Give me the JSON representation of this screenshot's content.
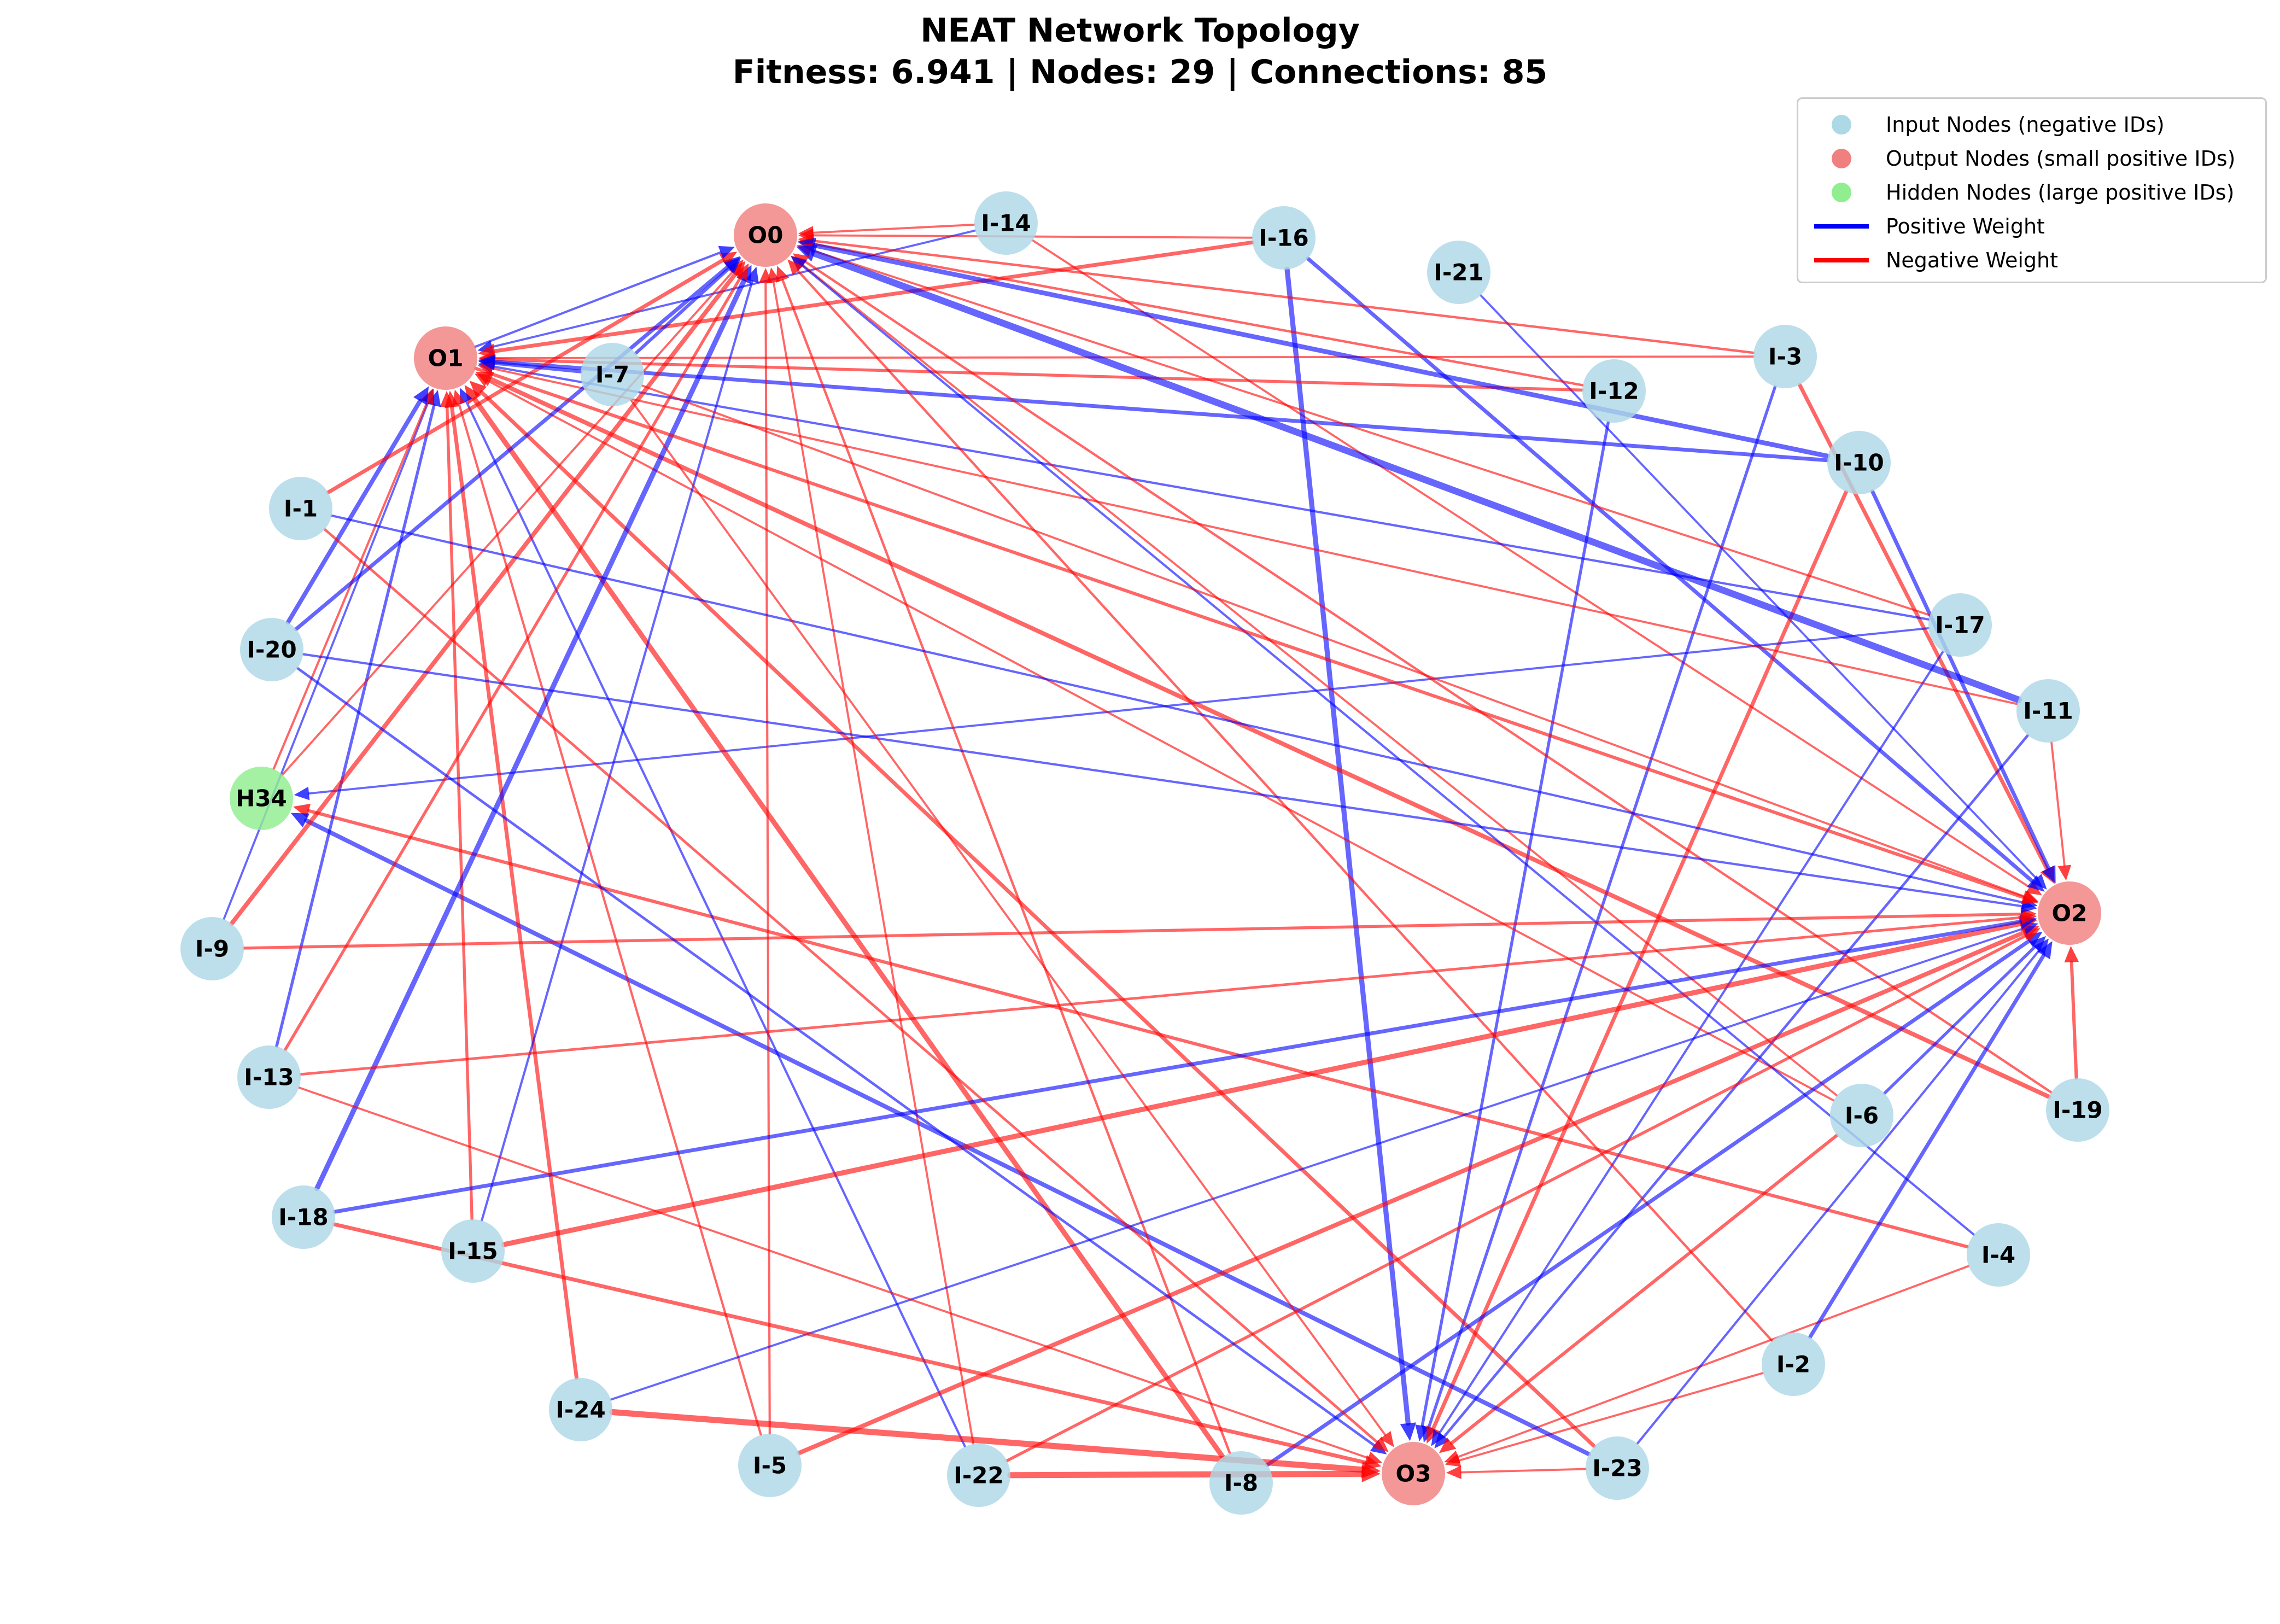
{
  "title": {
    "line1": "NEAT Network Topology",
    "line2": "Fitness: 6.941 | Nodes: 29 | Connections: 85"
  },
  "colors": {
    "input": "#add8e6",
    "output": "#f08080",
    "hidden": "#90ee90",
    "positive": "#0000ff",
    "negative": "#ff0000"
  },
  "legend": [
    {
      "label": "Input Nodes (negative IDs)",
      "kind": "dot",
      "color": "#add8e6"
    },
    {
      "label": "Output Nodes (small positive IDs)",
      "kind": "dot",
      "color": "#f08080"
    },
    {
      "label": "Hidden Nodes (large positive IDs)",
      "kind": "dot",
      "color": "#90ee90"
    },
    {
      "label": "Positive Weight",
      "kind": "line",
      "color": "#0000ff"
    },
    {
      "label": "Negative Weight",
      "kind": "line",
      "color": "#ff0000"
    }
  ],
  "nodes": [
    {
      "id": "O0",
      "type": "output"
    },
    {
      "id": "O1",
      "type": "output"
    },
    {
      "id": "O2",
      "type": "output"
    },
    {
      "id": "O3",
      "type": "output"
    },
    {
      "id": "H34",
      "type": "hidden"
    },
    {
      "id": "I-1",
      "type": "input"
    },
    {
      "id": "I-2",
      "type": "input"
    },
    {
      "id": "I-3",
      "type": "input"
    },
    {
      "id": "I-4",
      "type": "input"
    },
    {
      "id": "I-5",
      "type": "input"
    },
    {
      "id": "I-6",
      "type": "input"
    },
    {
      "id": "I-7",
      "type": "input"
    },
    {
      "id": "I-8",
      "type": "input"
    },
    {
      "id": "I-9",
      "type": "input"
    },
    {
      "id": "I-10",
      "type": "input"
    },
    {
      "id": "I-11",
      "type": "input"
    },
    {
      "id": "I-12",
      "type": "input"
    },
    {
      "id": "I-13",
      "type": "input"
    },
    {
      "id": "I-14",
      "type": "input"
    },
    {
      "id": "I-15",
      "type": "input"
    },
    {
      "id": "I-16",
      "type": "input"
    },
    {
      "id": "I-17",
      "type": "input"
    },
    {
      "id": "I-18",
      "type": "input"
    },
    {
      "id": "I-19",
      "type": "input"
    },
    {
      "id": "I-20",
      "type": "input"
    },
    {
      "id": "I-21",
      "type": "input"
    },
    {
      "id": "I-22",
      "type": "input"
    },
    {
      "id": "I-23",
      "type": "input"
    },
    {
      "id": "I-24",
      "type": "input"
    }
  ],
  "edges": [
    {
      "from": "I-14",
      "to": "O0",
      "sign": "negative",
      "weight": 0.5
    },
    {
      "from": "I-14",
      "to": "O1",
      "sign": "positive",
      "weight": 0.5
    },
    {
      "from": "I-14",
      "to": "O2",
      "sign": "negative",
      "weight": 0.5
    },
    {
      "from": "I-16",
      "to": "O0",
      "sign": "negative",
      "weight": 0.5
    },
    {
      "from": "I-16",
      "to": "O1",
      "sign": "negative",
      "weight": 1.5
    },
    {
      "from": "I-16",
      "to": "O2",
      "sign": "positive",
      "weight": 1.5
    },
    {
      "from": "I-16",
      "to": "O3",
      "sign": "positive",
      "weight": 2.2
    },
    {
      "from": "I-21",
      "to": "O2",
      "sign": "positive",
      "weight": 0.5
    },
    {
      "from": "I-3",
      "to": "O0",
      "sign": "negative",
      "weight": 0.7
    },
    {
      "from": "I-3",
      "to": "O1",
      "sign": "negative",
      "weight": 0.5
    },
    {
      "from": "I-3",
      "to": "O2",
      "sign": "negative",
      "weight": 1.5
    },
    {
      "from": "I-3",
      "to": "O3",
      "sign": "positive",
      "weight": 1.0
    },
    {
      "from": "I-12",
      "to": "O0",
      "sign": "negative",
      "weight": 0.7
    },
    {
      "from": "I-12",
      "to": "O1",
      "sign": "negative",
      "weight": 1.0
    },
    {
      "from": "I-12",
      "to": "O3",
      "sign": "positive",
      "weight": 1.0
    },
    {
      "from": "I-10",
      "to": "O0",
      "sign": "positive",
      "weight": 2.0
    },
    {
      "from": "I-10",
      "to": "O1",
      "sign": "positive",
      "weight": 1.5
    },
    {
      "from": "I-10",
      "to": "O2",
      "sign": "positive",
      "weight": 1.5
    },
    {
      "from": "I-10",
      "to": "O3",
      "sign": "negative",
      "weight": 1.5
    },
    {
      "from": "I-17",
      "to": "O0",
      "sign": "negative",
      "weight": 0.5
    },
    {
      "from": "I-17",
      "to": "O1",
      "sign": "positive",
      "weight": 0.6
    },
    {
      "from": "I-17",
      "to": "H34",
      "sign": "positive",
      "weight": 0.5
    },
    {
      "from": "I-17",
      "to": "O3",
      "sign": "positive",
      "weight": 0.6
    },
    {
      "from": "I-11",
      "to": "O0",
      "sign": "positive",
      "weight": 3.2
    },
    {
      "from": "I-11",
      "to": "O1",
      "sign": "negative",
      "weight": 0.5
    },
    {
      "from": "I-11",
      "to": "O2",
      "sign": "negative",
      "weight": 0.5
    },
    {
      "from": "I-11",
      "to": "O3",
      "sign": "positive",
      "weight": 0.8
    },
    {
      "from": "I-19",
      "to": "O0",
      "sign": "negative",
      "weight": 0.7
    },
    {
      "from": "I-19",
      "to": "O1",
      "sign": "negative",
      "weight": 1.8
    },
    {
      "from": "I-19",
      "to": "O2",
      "sign": "negative",
      "weight": 1.2
    },
    {
      "from": "I-6",
      "to": "O0",
      "sign": "negative",
      "weight": 0.5
    },
    {
      "from": "I-6",
      "to": "O1",
      "sign": "negative",
      "weight": 0.5
    },
    {
      "from": "I-6",
      "to": "O2",
      "sign": "positive",
      "weight": 1.0
    },
    {
      "from": "I-6",
      "to": "O3",
      "sign": "negative",
      "weight": 1.2
    },
    {
      "from": "I-4",
      "to": "O0",
      "sign": "positive",
      "weight": 0.6
    },
    {
      "from": "I-4",
      "to": "H34",
      "sign": "negative",
      "weight": 1.2
    },
    {
      "from": "I-4",
      "to": "O3",
      "sign": "negative",
      "weight": 0.5
    },
    {
      "from": "I-2",
      "to": "O0",
      "sign": "negative",
      "weight": 0.7
    },
    {
      "from": "I-2",
      "to": "O2",
      "sign": "positive",
      "weight": 1.5
    },
    {
      "from": "I-2",
      "to": "O3",
      "sign": "negative",
      "weight": 0.5
    },
    {
      "from": "I-23",
      "to": "O1",
      "sign": "negative",
      "weight": 1.5
    },
    {
      "from": "I-23",
      "to": "O2",
      "sign": "positive",
      "weight": 0.6
    },
    {
      "from": "I-23",
      "to": "H34",
      "sign": "positive",
      "weight": 1.8
    },
    {
      "from": "I-23",
      "to": "O3",
      "sign": "negative",
      "weight": 0.5
    },
    {
      "from": "I-8",
      "to": "O0",
      "sign": "negative",
      "weight": 0.7
    },
    {
      "from": "I-8",
      "to": "O1",
      "sign": "negative",
      "weight": 2.2
    },
    {
      "from": "I-8",
      "to": "O2",
      "sign": "positive",
      "weight": 1.5
    },
    {
      "from": "I-22",
      "to": "O0",
      "sign": "negative",
      "weight": 0.5
    },
    {
      "from": "I-22",
      "to": "O1",
      "sign": "positive",
      "weight": 0.6
    },
    {
      "from": "I-22",
      "to": "O2",
      "sign": "negative",
      "weight": 1.0
    },
    {
      "from": "I-22",
      "to": "O3",
      "sign": "negative",
      "weight": 2.8
    },
    {
      "from": "I-5",
      "to": "O0",
      "sign": "negative",
      "weight": 0.6
    },
    {
      "from": "I-5",
      "to": "O1",
      "sign": "negative",
      "weight": 0.6
    },
    {
      "from": "I-5",
      "to": "O2",
      "sign": "negative",
      "weight": 1.8
    },
    {
      "from": "I-24",
      "to": "O1",
      "sign": "negative",
      "weight": 1.5
    },
    {
      "from": "I-24",
      "to": "O2",
      "sign": "positive",
      "weight": 0.5
    },
    {
      "from": "I-24",
      "to": "O3",
      "sign": "negative",
      "weight": 2.8
    },
    {
      "from": "I-15",
      "to": "O0",
      "sign": "positive",
      "weight": 0.6
    },
    {
      "from": "I-15",
      "to": "O1",
      "sign": "negative",
      "weight": 1.0
    },
    {
      "from": "I-15",
      "to": "O2",
      "sign": "negative",
      "weight": 2.2
    },
    {
      "from": "I-18",
      "to": "O0",
      "sign": "positive",
      "weight": 2.2
    },
    {
      "from": "I-18",
      "to": "O2",
      "sign": "positive",
      "weight": 1.5
    },
    {
      "from": "I-18",
      "to": "O3",
      "sign": "negative",
      "weight": 1.5
    },
    {
      "from": "I-13",
      "to": "O0",
      "sign": "negative",
      "weight": 1.0
    },
    {
      "from": "I-13",
      "to": "O1",
      "sign": "positive",
      "weight": 1.0
    },
    {
      "from": "I-13",
      "to": "O2",
      "sign": "negative",
      "weight": 0.8
    },
    {
      "from": "I-13",
      "to": "O3",
      "sign": "negative",
      "weight": 0.5
    },
    {
      "from": "I-9",
      "to": "O0",
      "sign": "negative",
      "weight": 1.8
    },
    {
      "from": "I-9",
      "to": "O1",
      "sign": "positive",
      "weight": 0.5
    },
    {
      "from": "I-9",
      "to": "O2",
      "sign": "negative",
      "weight": 1.0
    },
    {
      "from": "H34",
      "to": "O0",
      "sign": "negative",
      "weight": 0.5
    },
    {
      "from": "H34",
      "to": "O1",
      "sign": "negative",
      "weight": 0.6
    },
    {
      "from": "I-20",
      "to": "O0",
      "sign": "positive",
      "weight": 1.5
    },
    {
      "from": "I-20",
      "to": "O1",
      "sign": "positive",
      "weight": 1.8
    },
    {
      "from": "I-20",
      "to": "O2",
      "sign": "positive",
      "weight": 0.6
    },
    {
      "from": "I-20",
      "to": "O3",
      "sign": "positive",
      "weight": 0.8
    },
    {
      "from": "I-1",
      "to": "O0",
      "sign": "negative",
      "weight": 1.5
    },
    {
      "from": "I-1",
      "to": "O2",
      "sign": "positive",
      "weight": 0.6
    },
    {
      "from": "I-1",
      "to": "O3",
      "sign": "negative",
      "weight": 0.8
    },
    {
      "from": "I-7",
      "to": "O0",
      "sign": "positive",
      "weight": 1.2
    },
    {
      "from": "I-7",
      "to": "O1",
      "sign": "positive",
      "weight": 1.5
    },
    {
      "from": "I-7",
      "to": "O2",
      "sign": "negative",
      "weight": 0.5
    },
    {
      "from": "I-7",
      "to": "O3",
      "sign": "negative",
      "weight": 0.5
    },
    {
      "from": "O1",
      "to": "O0",
      "sign": "positive",
      "weight": 0.6
    },
    {
      "from": "O1",
      "to": "O2",
      "sign": "negative",
      "weight": 1.2
    }
  ]
}
